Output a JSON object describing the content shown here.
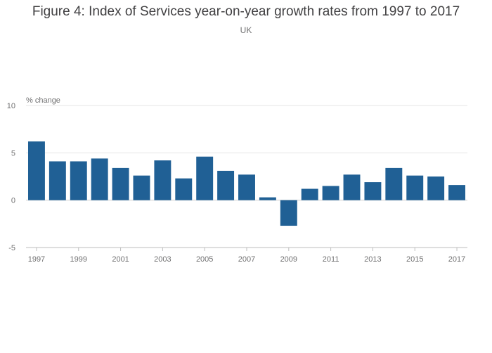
{
  "title": "Figure 4: Index of Services year-on-year growth rates from 1997 to 2017",
  "subtitle": "UK",
  "colors": {
    "bar": "#206095",
    "grid": "#e6e6e6",
    "axis": "#bebebe"
  },
  "chart_data": {
    "type": "bar",
    "title": "Figure 4: Index of Services year-on-year growth rates from 1997 to 2017",
    "subtitle": "UK",
    "xlabel": "",
    "ylabel": "% change",
    "ylim": [
      -5,
      10
    ],
    "yticks": [
      10,
      5,
      0,
      -5
    ],
    "xtick_labels": [
      "1997",
      "1999",
      "2001",
      "2003",
      "2005",
      "2007",
      "2009",
      "2011",
      "2013",
      "2015",
      "2017"
    ],
    "categories": [
      "1997",
      "1998",
      "1999",
      "2000",
      "2001",
      "2002",
      "2003",
      "2004",
      "2005",
      "2006",
      "2007",
      "2008",
      "2009",
      "2010",
      "2011",
      "2012",
      "2013",
      "2014",
      "2015",
      "2016",
      "2017"
    ],
    "values": [
      6.2,
      4.1,
      4.1,
      4.4,
      3.4,
      2.6,
      4.2,
      2.3,
      4.6,
      3.1,
      2.7,
      0.3,
      -2.7,
      1.2,
      1.5,
      2.7,
      1.9,
      3.4,
      2.6,
      2.5,
      1.6
    ],
    "grid": true
  }
}
